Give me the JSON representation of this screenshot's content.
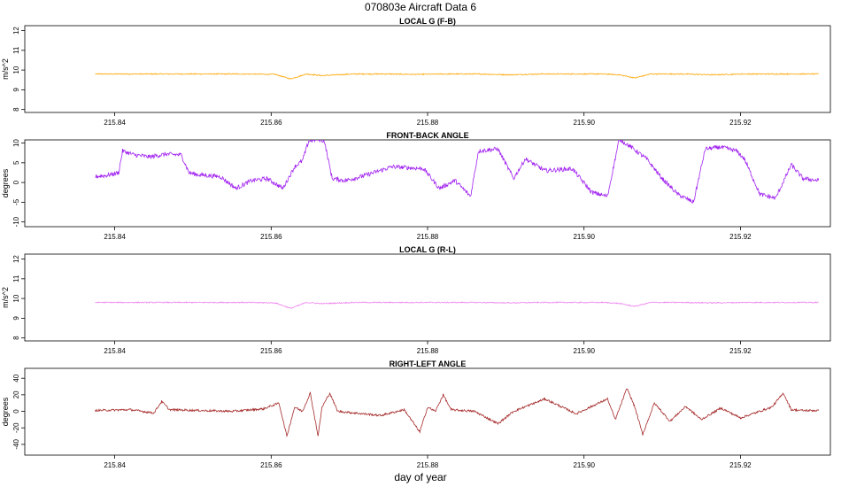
{
  "figure": {
    "title": "070803e   Aircraft Data 6",
    "xlabel": "day of year"
  },
  "chart_data": [
    {
      "type": "line",
      "title": "LOCAL G (F-B)",
      "ylabel": "m/s^2",
      "color": "#ffa500",
      "xlim": [
        215.8285,
        215.9315
      ],
      "ylim": [
        7.85,
        12.25
      ],
      "xticks": [
        "215.84",
        "215.86",
        "215.88",
        "215.90",
        "215.92"
      ],
      "yticks": [
        "8",
        "9",
        "10",
        "11",
        "12"
      ],
      "series": [
        {
          "x": [
            215.8375,
            215.8405,
            215.8445,
            215.8485,
            215.8525,
            215.8565,
            215.8605,
            215.8625,
            215.8645,
            215.8665,
            215.8705,
            215.8745,
            215.8785,
            215.8825,
            215.8865,
            215.8905,
            215.8945,
            215.8985,
            215.9025,
            215.9045,
            215.9065,
            215.9085,
            215.9125,
            215.9165,
            215.9205,
            215.9245,
            215.9265,
            215.93
          ],
          "y": [
            9.8,
            9.8,
            9.8,
            9.8,
            9.8,
            9.8,
            9.78,
            9.55,
            9.8,
            9.72,
            9.8,
            9.8,
            9.78,
            9.8,
            9.8,
            9.76,
            9.8,
            9.8,
            9.8,
            9.76,
            9.6,
            9.8,
            9.8,
            9.76,
            9.8,
            9.8,
            9.8,
            9.8
          ]
        }
      ]
    },
    {
      "type": "line",
      "title": "FRONT-BACK ANGLE",
      "ylabel": "degrees",
      "color": "#a020f0",
      "xlim": [
        215.8285,
        215.9315
      ],
      "ylim": [
        -11.2,
        10.8
      ],
      "xticks": [
        "215.84",
        "215.86",
        "215.88",
        "215.90",
        "215.92"
      ],
      "yticks": [
        "-10",
        "-5",
        "0",
        "5",
        "10"
      ],
      "series": [
        {
          "x": [
            215.8375,
            215.839,
            215.8405,
            215.841,
            215.8425,
            215.8445,
            215.8465,
            215.8485,
            215.8495,
            215.8505,
            215.8535,
            215.8555,
            215.8575,
            215.8595,
            215.8615,
            215.863,
            215.864,
            215.8648,
            215.866,
            215.8668,
            215.8678,
            215.8695,
            215.8715,
            215.8755,
            215.8795,
            215.8815,
            215.8835,
            215.8855,
            215.8865,
            215.889,
            215.891,
            215.8925,
            215.895,
            215.8985,
            215.901,
            215.903,
            215.9045,
            215.906,
            215.908,
            215.91,
            215.912,
            215.914,
            215.9155,
            215.9175,
            215.9195,
            215.9205,
            215.9225,
            215.9245,
            215.9265,
            215.928,
            215.93
          ],
          "y": [
            1.5,
            1.8,
            2.5,
            8.0,
            7.0,
            6.5,
            7.2,
            7.0,
            2.5,
            2.0,
            1.5,
            -1.5,
            0.5,
            1.0,
            -1.5,
            4.0,
            5.5,
            10.5,
            11.0,
            10.5,
            1.0,
            0.5,
            1.5,
            4.0,
            3.5,
            -1.5,
            0.5,
            -3.5,
            8.0,
            8.5,
            1.0,
            6.0,
            3.0,
            3.5,
            -2.5,
            -3.5,
            11.0,
            9.0,
            6.0,
            1.0,
            -3.0,
            -5.0,
            8.5,
            9.0,
            8.0,
            6.0,
            -3.0,
            -4.0,
            4.5,
            1.0,
            0.5
          ]
        }
      ]
    },
    {
      "type": "line",
      "title": "LOCAL G (R-L)",
      "ylabel": "m/s^2",
      "color": "#ee82ee",
      "xlim": [
        215.8285,
        215.9315
      ],
      "ylim": [
        7.85,
        12.25
      ],
      "xticks": [
        "215.84",
        "215.86",
        "215.88",
        "215.90",
        "215.92"
      ],
      "yticks": [
        "8",
        "9",
        "10",
        "11",
        "12"
      ],
      "series": [
        {
          "x": [
            215.8375,
            215.8405,
            215.8445,
            215.8485,
            215.8525,
            215.8565,
            215.8605,
            215.8625,
            215.8645,
            215.8665,
            215.8705,
            215.8745,
            215.8785,
            215.8825,
            215.8865,
            215.8905,
            215.8945,
            215.8985,
            215.9025,
            215.9045,
            215.9065,
            215.9085,
            215.9125,
            215.9165,
            215.9205,
            215.9245,
            215.9265,
            215.93
          ],
          "y": [
            9.8,
            9.8,
            9.8,
            9.8,
            9.8,
            9.8,
            9.78,
            9.5,
            9.8,
            9.74,
            9.8,
            9.8,
            9.8,
            9.8,
            9.8,
            9.78,
            9.8,
            9.8,
            9.8,
            9.75,
            9.6,
            9.8,
            9.8,
            9.78,
            9.8,
            9.8,
            9.8,
            9.8
          ]
        }
      ]
    },
    {
      "type": "line",
      "title": "RIGHT-LEFT ANGLE",
      "ylabel": "degrees",
      "color": "#a52a2a",
      "xlim": [
        215.8285,
        215.9315
      ],
      "ylim": [
        -53,
        52
      ],
      "xticks": [
        "215.84",
        "215.86",
        "215.88",
        "215.90",
        "215.92"
      ],
      "yticks": [
        "-40",
        "-20",
        "0",
        "20",
        "40"
      ],
      "series": [
        {
          "x": [
            215.8375,
            215.842,
            215.845,
            215.846,
            215.847,
            215.855,
            215.859,
            215.861,
            215.862,
            215.863,
            215.864,
            215.865,
            215.866,
            215.8665,
            215.8675,
            215.8685,
            215.874,
            215.877,
            215.879,
            215.88,
            215.881,
            215.882,
            215.883,
            215.886,
            215.889,
            215.891,
            215.895,
            215.899,
            215.903,
            215.904,
            215.9055,
            215.9065,
            215.9075,
            215.909,
            215.911,
            215.913,
            215.915,
            215.9175,
            215.92,
            215.924,
            215.9255,
            215.9265,
            215.928,
            215.93
          ],
          "y": [
            1,
            2,
            -2,
            12,
            2,
            0,
            3,
            10,
            -30,
            5,
            0,
            22,
            -30,
            5,
            22,
            0,
            -5,
            2,
            -25,
            5,
            0,
            20,
            2,
            0,
            -15,
            0,
            15,
            -3,
            15,
            -10,
            28,
            5,
            -28,
            10,
            -12,
            6,
            -10,
            4,
            -8,
            5,
            22,
            2,
            1,
            1
          ]
        }
      ]
    }
  ]
}
